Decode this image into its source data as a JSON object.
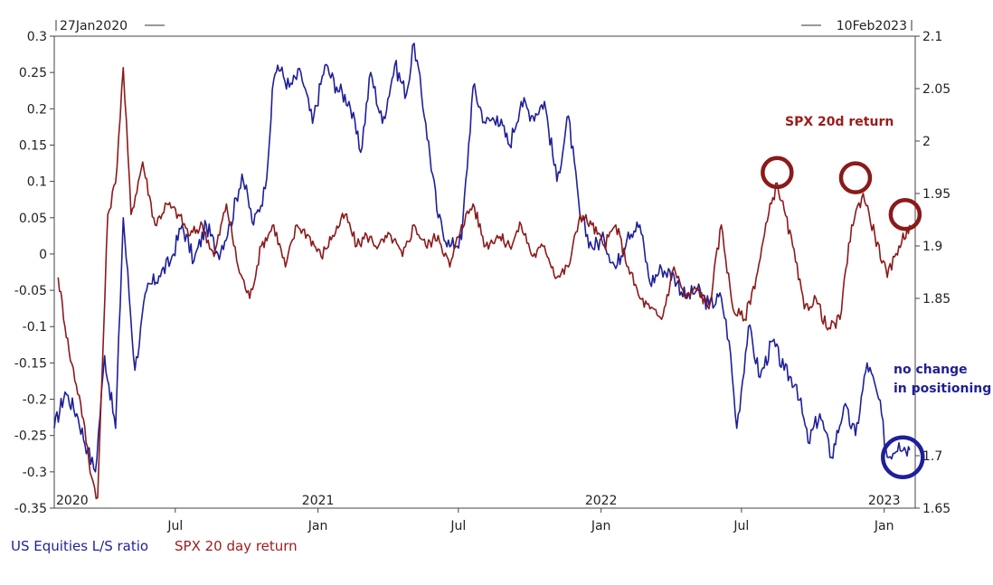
{
  "chart_data": {
    "type": "line",
    "title": "",
    "date_range": {
      "start_label": "27Jan2020",
      "end_label": "10Feb2023"
    },
    "x_year_labels": [
      "2020",
      "2021",
      "2022",
      "2023"
    ],
    "x_month_labels": [
      "Jul",
      "Jan",
      "Jul",
      "Jan",
      "Jul",
      "Jan"
    ],
    "left_axis": {
      "ylim": [
        -0.35,
        0.3
      ],
      "ticks": [
        "0.3",
        "0.25",
        "0.2",
        "0.15",
        "0.1",
        "0.05",
        "0",
        "-0.05",
        "-0.1",
        "-0.15",
        "-0.2",
        "-0.25",
        "-0.3",
        "-0.35"
      ]
    },
    "right_axis": {
      "ylim": [
        1.65,
        2.1
      ],
      "ticks": [
        "2.1",
        "2.05",
        "2",
        "1.95",
        "1.9",
        "1.85",
        "1.7",
        "1.65"
      ]
    },
    "series": [
      {
        "name": "US Equities L/S ratio",
        "axis": "left",
        "color": "#1f1f9a",
        "x": [
          "2020-01-27",
          "2020-02-10",
          "2020-02-25",
          "2020-03-10",
          "2020-03-20",
          "2020-04-01",
          "2020-04-15",
          "2020-04-25",
          "2020-05-10",
          "2020-05-25",
          "2020-06-10",
          "2020-06-25",
          "2020-07-10",
          "2020-07-25",
          "2020-08-10",
          "2020-08-25",
          "2020-09-10",
          "2020-09-25",
          "2020-10-10",
          "2020-10-25",
          "2020-11-05",
          "2020-11-10",
          "2020-11-25",
          "2020-12-10",
          "2020-12-25",
          "2021-01-10",
          "2021-01-25",
          "2021-02-10",
          "2021-02-25",
          "2021-03-10",
          "2021-03-25",
          "2021-04-10",
          "2021-04-25",
          "2021-05-05",
          "2021-05-20",
          "2021-06-05",
          "2021-06-20",
          "2021-07-05",
          "2021-07-20",
          "2021-08-05",
          "2021-08-20",
          "2021-09-05",
          "2021-09-20",
          "2021-10-05",
          "2021-10-20",
          "2021-11-05",
          "2021-11-20",
          "2021-12-05",
          "2021-12-20",
          "2022-01-05",
          "2022-01-20",
          "2022-02-05",
          "2022-02-20",
          "2022-03-05",
          "2022-03-20",
          "2022-04-05",
          "2022-04-20",
          "2022-05-05",
          "2022-05-20",
          "2022-06-05",
          "2022-06-15",
          "2022-06-25",
          "2022-07-10",
          "2022-07-25",
          "2022-08-10",
          "2022-08-25",
          "2022-09-10",
          "2022-09-25",
          "2022-10-10",
          "2022-10-25",
          "2022-11-10",
          "2022-11-25",
          "2022-12-10",
          "2022-12-25",
          "2023-01-05",
          "2023-01-20",
          "2023-02-03"
        ],
        "values": [
          -0.24,
          -0.19,
          -0.22,
          -0.27,
          -0.3,
          -0.14,
          -0.24,
          0.05,
          -0.16,
          -0.05,
          -0.03,
          -0.01,
          0.04,
          -0.01,
          0.04,
          0.0,
          0.04,
          0.11,
          0.04,
          0.09,
          0.24,
          0.26,
          0.23,
          0.25,
          0.18,
          0.26,
          0.23,
          0.21,
          0.14,
          0.25,
          0.18,
          0.26,
          0.22,
          0.29,
          0.18,
          0.05,
          0.01,
          0.02,
          0.23,
          0.18,
          0.19,
          0.15,
          0.21,
          0.19,
          0.21,
          0.1,
          0.19,
          0.05,
          0.01,
          0.02,
          -0.02,
          0.03,
          0.04,
          -0.04,
          -0.02,
          -0.03,
          -0.06,
          -0.05,
          -0.07,
          -0.06,
          -0.12,
          -0.24,
          -0.1,
          -0.17,
          -0.12,
          -0.16,
          -0.18,
          -0.26,
          -0.22,
          -0.28,
          -0.21,
          -0.25,
          -0.15,
          -0.2,
          -0.28,
          -0.26,
          -0.27
        ]
      },
      {
        "name": "SPX 20 day return",
        "axis": "right",
        "color": "#8b1a1a",
        "x": [
          "2020-02-01",
          "2020-02-15",
          "2020-03-01",
          "2020-03-15",
          "2020-03-23",
          "2020-04-05",
          "2020-04-15",
          "2020-04-25",
          "2020-05-05",
          "2020-05-20",
          "2020-06-05",
          "2020-06-20",
          "2020-07-05",
          "2020-07-20",
          "2020-08-05",
          "2020-08-20",
          "2020-09-05",
          "2020-09-20",
          "2020-10-05",
          "2020-10-20",
          "2020-11-05",
          "2020-11-20",
          "2020-12-05",
          "2020-12-20",
          "2021-01-05",
          "2021-01-20",
          "2021-02-05",
          "2021-02-20",
          "2021-03-05",
          "2021-03-20",
          "2021-04-05",
          "2021-04-20",
          "2021-05-05",
          "2021-05-20",
          "2021-06-05",
          "2021-06-20",
          "2021-07-05",
          "2021-07-20",
          "2021-08-05",
          "2021-08-20",
          "2021-09-05",
          "2021-09-20",
          "2021-10-05",
          "2021-10-20",
          "2021-11-05",
          "2021-11-20",
          "2021-12-05",
          "2021-12-20",
          "2022-01-05",
          "2022-01-20",
          "2022-02-05",
          "2022-02-20",
          "2022-03-05",
          "2022-03-20",
          "2022-04-05",
          "2022-04-20",
          "2022-05-05",
          "2022-05-20",
          "2022-06-05",
          "2022-06-20",
          "2022-07-05",
          "2022-07-20",
          "2022-08-05",
          "2022-08-16",
          "2022-09-05",
          "2022-09-20",
          "2022-10-05",
          "2022-10-20",
          "2022-11-05",
          "2022-11-20",
          "2022-12-05",
          "2022-12-20",
          "2023-01-05",
          "2023-01-20",
          "2023-02-03"
        ],
        "values": [
          1.87,
          1.8,
          1.75,
          1.68,
          1.66,
          1.93,
          1.96,
          2.07,
          1.93,
          1.98,
          1.92,
          1.94,
          1.93,
          1.91,
          1.92,
          1.89,
          1.94,
          1.88,
          1.85,
          1.9,
          1.92,
          1.88,
          1.92,
          1.91,
          1.89,
          1.91,
          1.93,
          1.9,
          1.91,
          1.9,
          1.91,
          1.89,
          1.92,
          1.9,
          1.91,
          1.88,
          1.92,
          1.94,
          1.9,
          1.91,
          1.9,
          1.92,
          1.89,
          1.9,
          1.87,
          1.88,
          1.93,
          1.92,
          1.9,
          1.92,
          1.88,
          1.85,
          1.84,
          1.83,
          1.88,
          1.85,
          1.86,
          1.84,
          1.92,
          1.84,
          1.83,
          1.87,
          1.93,
          1.96,
          1.9,
          1.84,
          1.85,
          1.82,
          1.83,
          1.92,
          1.95,
          1.91,
          1.87,
          1.9,
          1.92
        ]
      }
    ],
    "legend": {
      "placement": "bottom-left",
      "entries": [
        "US Equities L/S ratio",
        "SPX 20 day return"
      ]
    },
    "annotations": [
      {
        "text": "SPX 20d return",
        "color": "#9b1c1c"
      },
      {
        "text_line1": "no change",
        "text_line2": "in positioning",
        "color": "#1f1f9a"
      }
    ],
    "highlight_circles": [
      {
        "series": "SPX 20 day return",
        "x": "2022-08-16",
        "y": 1.97,
        "color": "#8b1a1a"
      },
      {
        "series": "SPX 20 day return",
        "x": "2022-11-25",
        "y": 1.965,
        "color": "#8b1a1a"
      },
      {
        "series": "SPX 20 day return",
        "x": "2023-01-28",
        "y": 1.93,
        "color": "#8b1a1a"
      },
      {
        "series": "US Equities L/S ratio",
        "x": "2023-01-25",
        "y": -0.28,
        "color": "#1f1f9a"
      }
    ],
    "grid": false
  }
}
